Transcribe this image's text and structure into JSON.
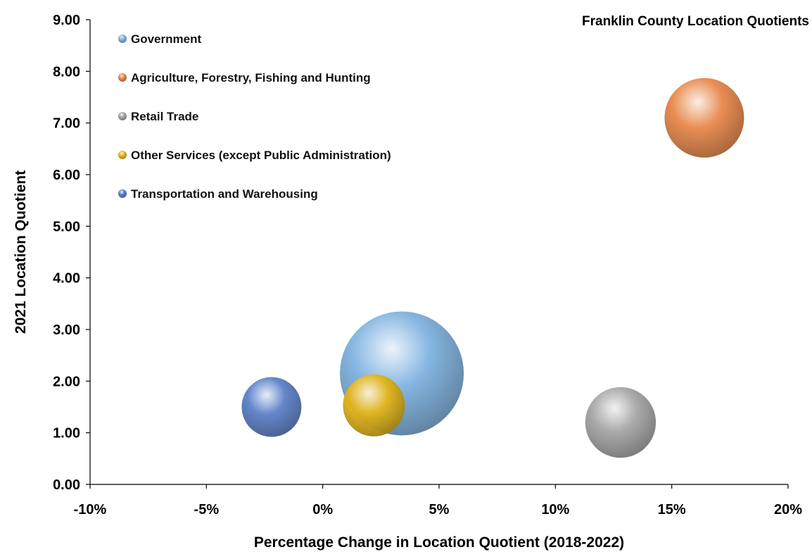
{
  "chart_data": {
    "type": "bubble",
    "title": "Franklin County Location Quotients",
    "xlabel": "Percentage Change in Location Quotient (2018-2022)",
    "ylabel": "2021 Location Quotient",
    "xlim": [
      -0.1,
      0.2
    ],
    "ylim": [
      0,
      9
    ],
    "x_ticks": [
      "-10%",
      "-5%",
      "0%",
      "5%",
      "10%",
      "15%",
      "20%"
    ],
    "x_tick_values": [
      -0.1,
      -0.05,
      0,
      0.05,
      0.1,
      0.15,
      0.2
    ],
    "y_ticks": [
      "0.00",
      "1.00",
      "2.00",
      "3.00",
      "4.00",
      "5.00",
      "6.00",
      "7.00",
      "8.00",
      "9.00"
    ],
    "y_tick_values": [
      0,
      1,
      2,
      3,
      4,
      5,
      6,
      7,
      8,
      9
    ],
    "grid": false,
    "legend_position": "top-left",
    "series": [
      {
        "name": "Government",
        "x": 0.034,
        "y": 2.15,
        "size": 4.0,
        "color": "#7fb2e0"
      },
      {
        "name": "Agriculture, Forestry, Fishing and Hunting",
        "x": 0.164,
        "y": 7.1,
        "size": 1.65,
        "color": "#e8884a"
      },
      {
        "name": "Retail Trade",
        "x": 0.128,
        "y": 1.2,
        "size": 1.3,
        "color": "#a6a6a6"
      },
      {
        "name": "Other Services (except Public Administration)",
        "x": 0.022,
        "y": 1.53,
        "size": 1.0,
        "color": "#e6b619"
      },
      {
        "name": "Transportation and Warehousing",
        "x": -0.022,
        "y": 1.5,
        "size": 0.93,
        "color": "#5b80c8"
      }
    ]
  }
}
